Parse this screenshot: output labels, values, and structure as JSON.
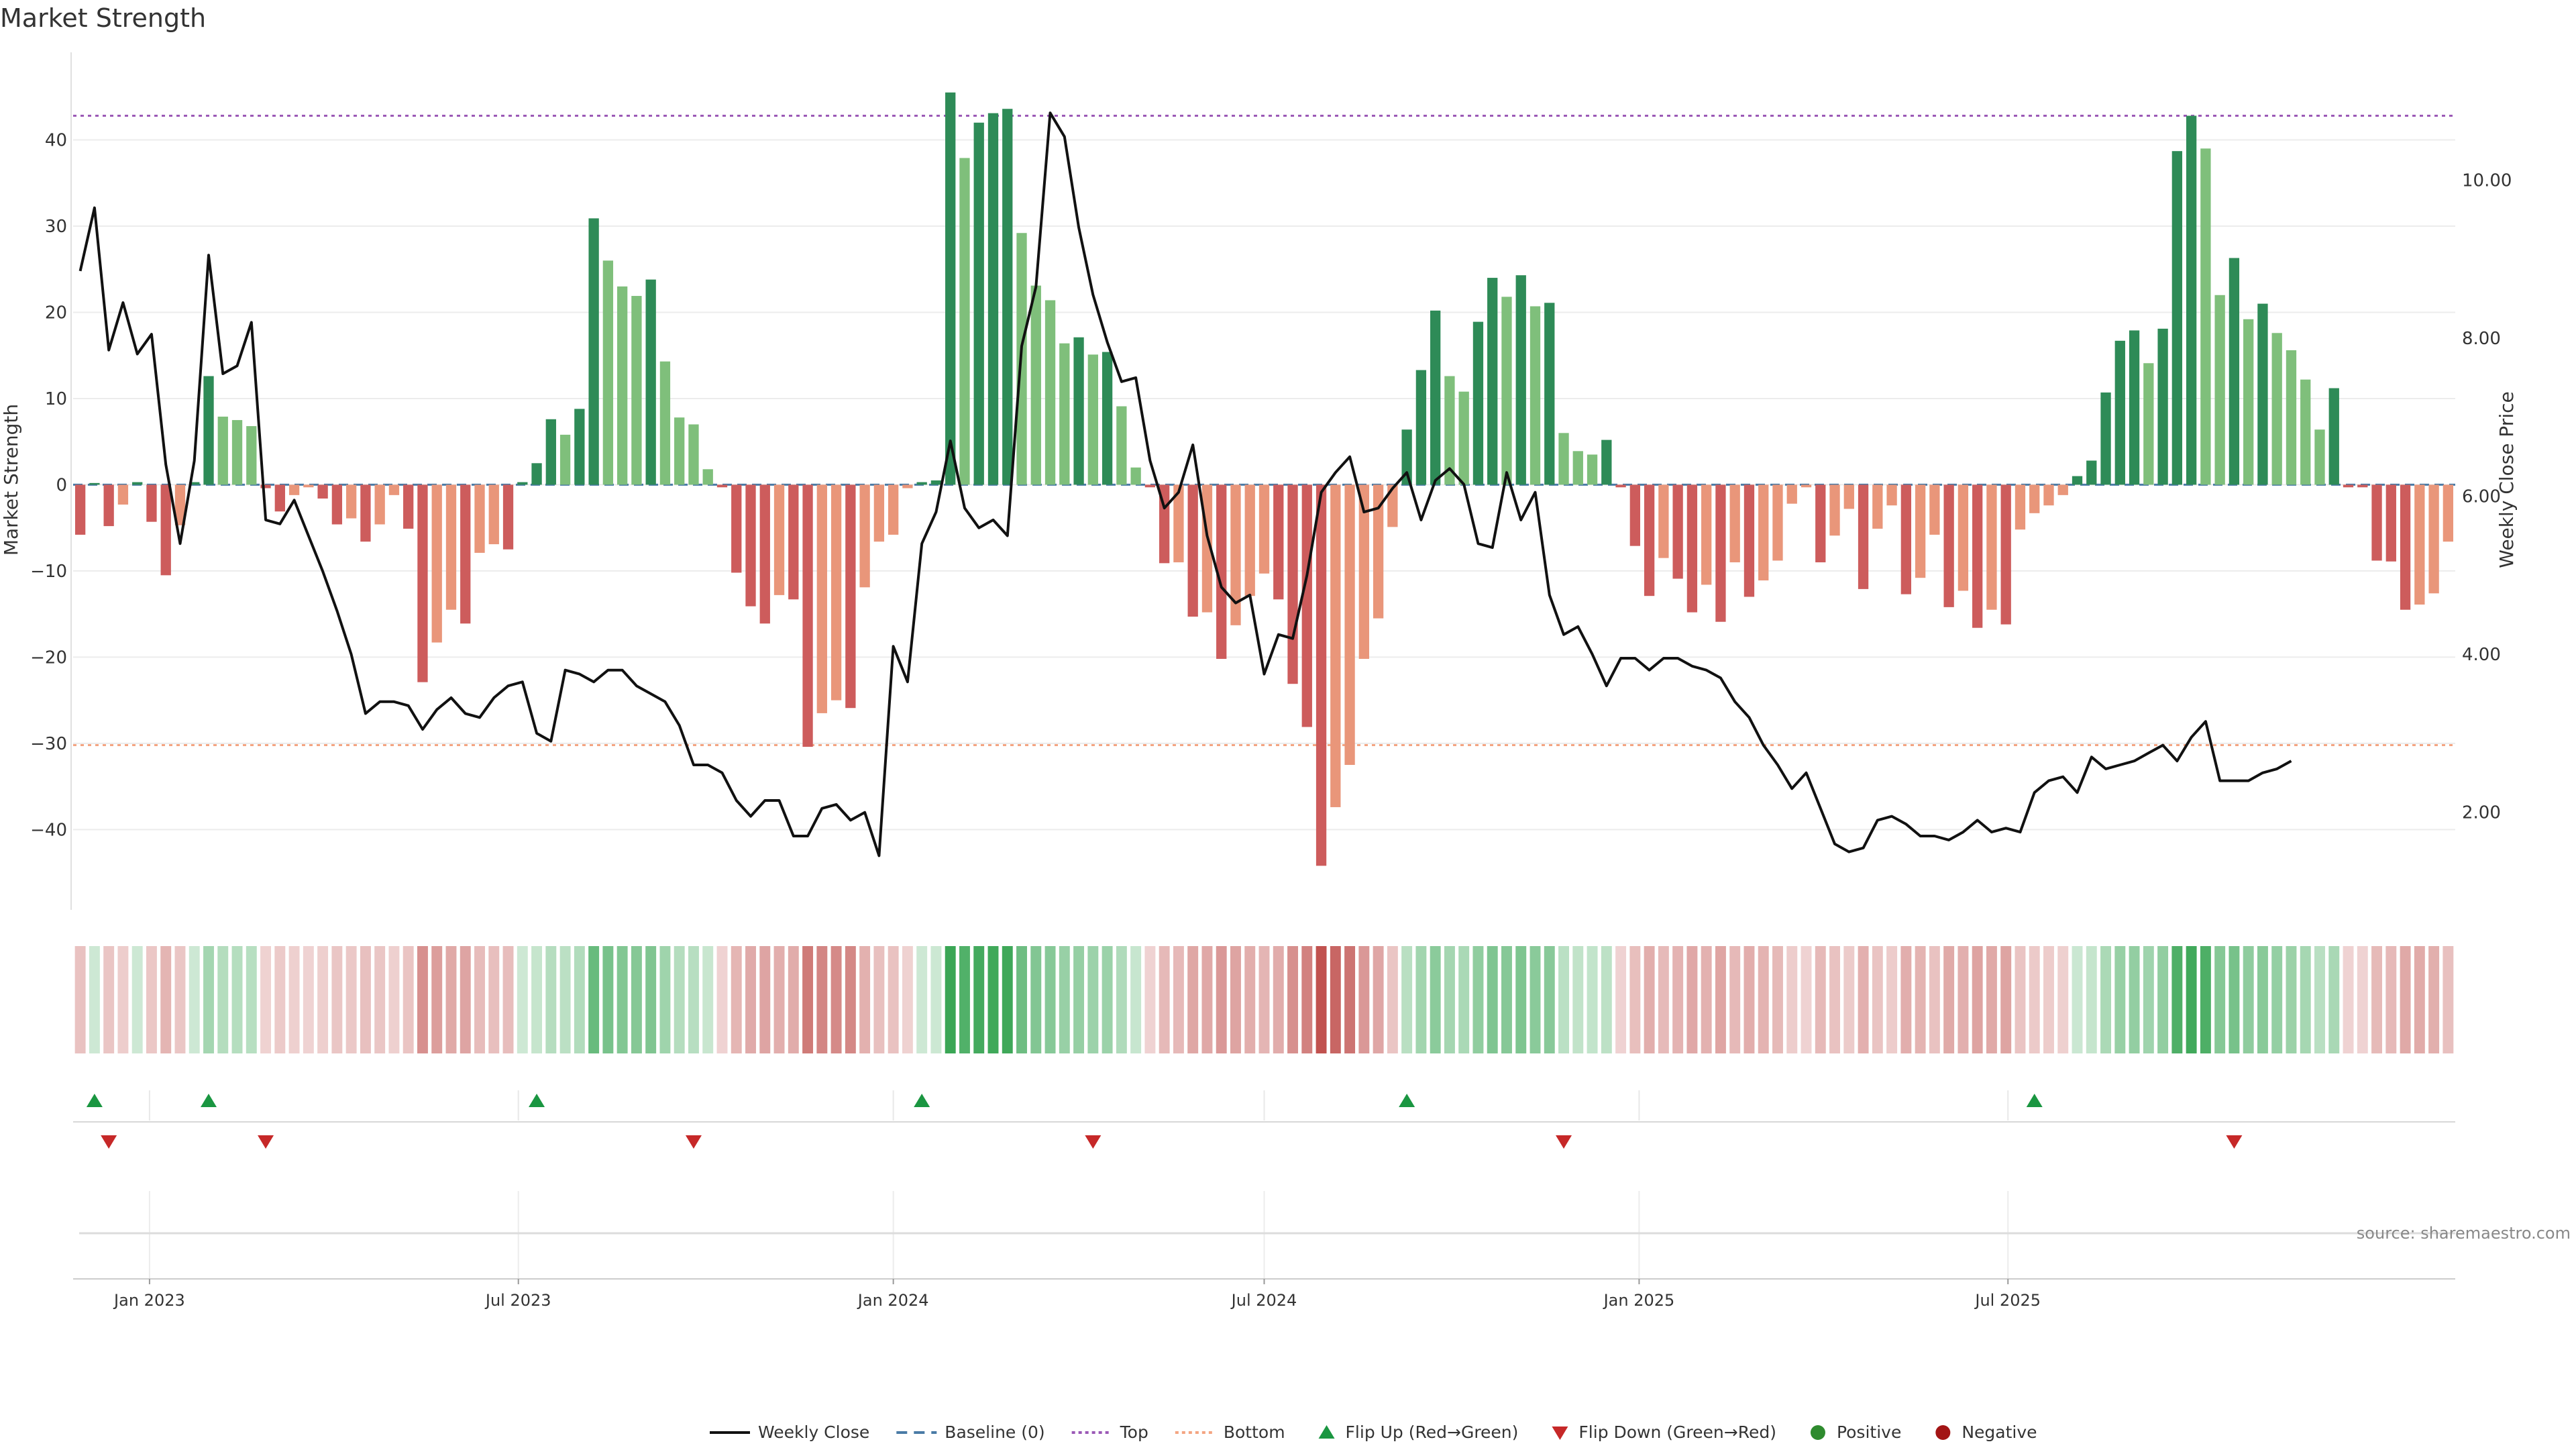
{
  "chart_data": {
    "type": "bar",
    "title": "Market Strength",
    "ylabel_left": "Market Strength",
    "ylabel_right": "Weekly Close Price",
    "source": "source: sharemaestro.com",
    "x_start_date": "2022-11-28",
    "x_tick_labels": [
      {
        "date": "2023-01-01",
        "label": "Jan 2023"
      },
      {
        "date": "2023-07-01",
        "label": "Jul 2023"
      },
      {
        "date": "2024-01-01",
        "label": "Jan 2024"
      },
      {
        "date": "2024-07-01",
        "label": "Jul 2024"
      },
      {
        "date": "2025-01-01",
        "label": "Jan 2025"
      },
      {
        "date": "2025-07-01",
        "label": "Jul 2025"
      }
    ],
    "y_left_ticks": [
      40,
      30,
      20,
      10,
      0,
      -10,
      -20,
      -30,
      -40
    ],
    "y_left_range": [
      -49,
      50
    ],
    "y_right_ticks": [
      {
        "value": 10,
        "label": "10.00"
      },
      {
        "value": 8,
        "label": "8.00"
      },
      {
        "value": 6,
        "label": "6.00"
      },
      {
        "value": 4,
        "label": "4.00"
      },
      {
        "value": 2,
        "label": "2.00"
      }
    ],
    "y_right_range": [
      0.8,
      11.6
    ],
    "top_line": 42.8,
    "bottom_line": -30.2,
    "strength": [
      -5.8,
      0.2,
      -4.8,
      -2.3,
      0.3,
      -4.3,
      -10.5,
      -4.7,
      0.3,
      12.6,
      7.9,
      7.5,
      6.8,
      -0.4,
      -3.1,
      -1.2,
      -0.3,
      -1.6,
      -4.6,
      -3.9,
      -6.6,
      -4.6,
      -1.2,
      -5.1,
      -22.9,
      -18.3,
      -14.5,
      -16.1,
      -7.9,
      -6.9,
      -7.5,
      0.3,
      2.5,
      7.6,
      5.8,
      8.8,
      30.9,
      26.0,
      23.0,
      21.9,
      23.8,
      14.3,
      7.8,
      7.0,
      1.8,
      -0.3,
      -10.2,
      -14.1,
      -16.1,
      -12.8,
      -13.3,
      -30.4,
      -26.5,
      -25.0,
      -25.9,
      -11.9,
      -6.6,
      -5.8,
      -0.4,
      0.3,
      0.5,
      45.5,
      37.9,
      42.0,
      43.1,
      43.6,
      29.2,
      23.1,
      21.4,
      16.4,
      17.1,
      15.1,
      15.4,
      9.1,
      2.0,
      -0.3,
      -9.1,
      -9.0,
      -15.3,
      -14.8,
      -20.2,
      -16.3,
      -12.9,
      -10.3,
      -13.3,
      -23.1,
      -28.1,
      -44.2,
      -37.4,
      -32.5,
      -20.2,
      -15.5,
      -4.9,
      6.4,
      13.3,
      20.2,
      12.6,
      10.8,
      18.9,
      24.0,
      21.8,
      24.3,
      20.7,
      21.1,
      6.0,
      3.9,
      3.5,
      5.2,
      -0.3,
      -7.1,
      -12.9,
      -8.5,
      -10.9,
      -14.8,
      -11.6,
      -15.9,
      -9.0,
      -13.0,
      -11.1,
      -8.8,
      -2.2,
      -0.3,
      -9.0,
      -5.9,
      -2.8,
      -12.1,
      -5.1,
      -2.4,
      -12.7,
      -10.8,
      -5.8,
      -14.2,
      -12.3,
      -16.6,
      -14.5,
      -16.2,
      -5.2,
      -3.3,
      -2.4,
      -1.2,
      1.0,
      2.8,
      10.7,
      16.7,
      17.9,
      14.1,
      18.1,
      38.7,
      42.8,
      39.0,
      22.0,
      26.3,
      19.2,
      21.0,
      17.6,
      15.6,
      12.2,
      6.4,
      11.2,
      -0.3,
      -0.3,
      -8.8,
      -8.9,
      -14.5,
      -13.9,
      -12.6,
      -6.6
    ],
    "price": [
      8.85,
      9.65,
      7.85,
      8.45,
      7.8,
      8.05,
      6.4,
      5.4,
      6.45,
      9.05,
      7.55,
      7.65,
      8.2,
      5.7,
      5.65,
      5.95,
      5.5,
      5.05,
      4.55,
      4.0,
      3.25,
      3.4,
      3.4,
      3.35,
      3.05,
      3.3,
      3.45,
      3.25,
      3.2,
      3.45,
      3.6,
      3.65,
      3.0,
      2.9,
      3.8,
      3.75,
      3.65,
      3.8,
      3.8,
      3.6,
      3.5,
      3.4,
      3.1,
      2.6,
      2.6,
      2.5,
      2.15,
      1.95,
      2.15,
      2.15,
      1.7,
      1.7,
      2.05,
      2.1,
      1.9,
      2.0,
      1.45,
      4.1,
      3.65,
      5.4,
      5.8,
      6.7,
      5.85,
      5.6,
      5.7,
      5.5,
      7.9,
      8.65,
      10.85,
      10.55,
      9.4,
      8.55,
      7.95,
      7.45,
      7.5,
      6.45,
      5.85,
      6.05,
      6.65,
      5.5,
      4.85,
      4.65,
      4.75,
      3.75,
      4.25,
      4.2,
      5.0,
      6.05,
      6.3,
      6.5,
      5.8,
      5.85,
      6.1,
      6.3,
      5.7,
      6.2,
      6.35,
      6.15,
      5.4,
      5.35,
      6.3,
      5.7,
      6.05,
      4.75,
      4.25,
      4.35,
      4.0,
      3.6,
      3.95,
      3.95,
      3.8,
      3.95,
      3.95,
      3.85,
      3.8,
      3.7,
      3.4,
      3.2,
      2.85,
      2.6,
      2.3,
      2.5,
      2.05,
      1.6,
      1.5,
      1.55,
      1.9,
      1.95,
      1.85,
      1.7,
      1.7,
      1.65,
      1.75,
      1.9,
      1.75,
      1.8,
      1.75,
      2.25,
      2.4,
      2.45,
      2.25,
      2.7,
      2.55,
      2.6,
      2.65,
      2.75,
      2.85,
      2.65,
      2.95,
      3.15,
      2.4,
      2.4,
      2.4,
      2.5,
      2.55,
      2.65
    ],
    "flips_up": [
      1,
      9,
      32,
      59,
      93,
      137
    ],
    "flips_down": [
      2,
      13,
      43,
      71,
      104,
      151
    ],
    "legend": [
      {
        "label": "Weekly Close",
        "symbol": "line-solid"
      },
      {
        "label": "Baseline (0)",
        "symbol": "line-dashed"
      },
      {
        "label": "Top",
        "symbol": "line-dotted"
      },
      {
        "label": "Bottom",
        "symbol": "line-dotted"
      },
      {
        "label": "Flip Up (Red→Green)",
        "symbol": "triangle-up"
      },
      {
        "label": "Flip Down (Green→Red)",
        "symbol": "triangle-down"
      },
      {
        "label": "Positive",
        "symbol": "circle"
      },
      {
        "label": "Negative",
        "symbol": "circle"
      }
    ],
    "colors": {
      "pos_strong": "#2e8b57",
      "pos_weak": "#7fbf7b",
      "neg_strong": "#cd5c5c",
      "neg_weak": "#e9967a",
      "price_line": "#111111",
      "baseline": "#4a7ba6",
      "top": "#9b59b6",
      "bottom": "#f4a582",
      "flip_up": "#1a9641",
      "flip_down": "#c62828",
      "positive_dot": "#2e8b2e",
      "negative_dot": "#a31515"
    }
  }
}
